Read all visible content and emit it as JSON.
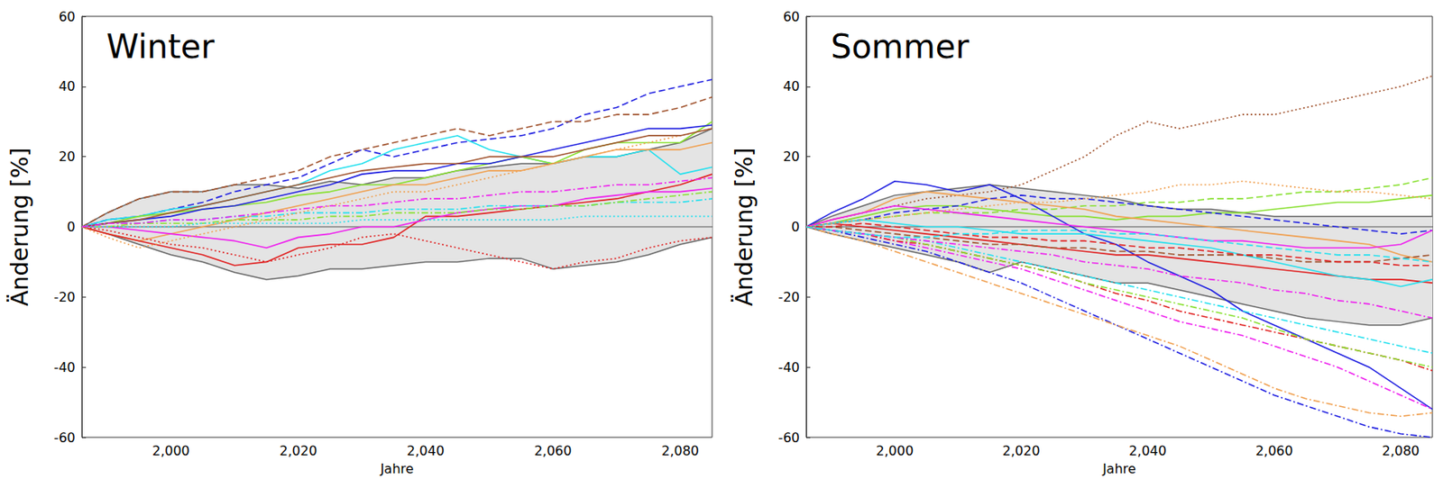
{
  "chart_data": [
    {
      "type": "line",
      "title": "Winter",
      "x_label": "Jahre",
      "y_label": "Änderung [%]",
      "x": [
        1986,
        1990,
        1995,
        2000,
        2005,
        2010,
        2015,
        2020,
        2025,
        2030,
        2035,
        2040,
        2045,
        2050,
        2055,
        2060,
        2065,
        2070,
        2075,
        2080,
        2085
      ],
      "xlim": [
        1986,
        2085
      ],
      "xticks": [
        2000,
        2020,
        2040,
        2060,
        2080
      ],
      "ylim": [
        -60,
        60
      ],
      "yticks": [
        -60,
        -40,
        -20,
        0,
        20,
        40,
        60
      ],
      "grid": false,
      "band": {
        "color": "#e4e4e4",
        "upper": [
          0,
          4,
          8,
          10,
          10,
          12,
          12,
          11,
          13,
          12,
          14,
          14,
          16,
          17,
          18,
          18,
          20,
          20,
          22,
          24,
          28
        ],
        "lower": [
          0,
          -2,
          -5,
          -8,
          -10,
          -13,
          -15,
          -14,
          -12,
          -12,
          -11,
          -10,
          -10,
          -9,
          -9,
          -12,
          -11,
          -10,
          -8,
          -5,
          -3
        ]
      },
      "series": [
        {
          "color": "#808080",
          "line_style": "solid",
          "values": [
            0,
            0,
            0,
            0,
            0,
            0,
            0,
            0,
            0,
            0,
            0,
            0,
            0,
            0,
            0,
            0,
            0,
            0,
            0,
            0,
            0
          ]
        },
        {
          "color": "#2020e0",
          "line_style": "dashed",
          "values": [
            0,
            2,
            3,
            5,
            7,
            10,
            12,
            14,
            18,
            22,
            20,
            22,
            24,
            25,
            26,
            28,
            32,
            34,
            38,
            40,
            42
          ]
        },
        {
          "color": "#a0522d",
          "line_style": "dashed",
          "values": [
            0,
            4,
            8,
            10,
            10,
            12,
            14,
            16,
            20,
            22,
            24,
            26,
            28,
            26,
            28,
            30,
            30,
            32,
            32,
            34,
            37
          ]
        },
        {
          "color": "#22e0ee",
          "line_style": "solid",
          "values": [
            0,
            2,
            3,
            5,
            6,
            8,
            10,
            12,
            16,
            18,
            22,
            24,
            26,
            22,
            20,
            18,
            20,
            20,
            22,
            15,
            17
          ]
        },
        {
          "color": "#88e030",
          "line_style": "solid",
          "values": [
            0,
            1,
            3,
            4,
            5,
            6,
            7,
            9,
            10,
            12,
            12,
            14,
            16,
            18,
            20,
            18,
            22,
            24,
            24,
            24,
            30
          ]
        },
        {
          "color": "#2020e0",
          "line_style": "solid",
          "values": [
            0,
            1,
            2,
            3,
            5,
            6,
            8,
            10,
            12,
            15,
            16,
            16,
            18,
            18,
            20,
            22,
            24,
            26,
            28,
            28,
            29
          ]
        },
        {
          "color": "#f0a050",
          "line_style": "solid",
          "values": [
            0,
            -2,
            -4,
            -2,
            0,
            2,
            4,
            6,
            8,
            10,
            12,
            12,
            14,
            16,
            16,
            18,
            20,
            22,
            22,
            22,
            24
          ]
        },
        {
          "color": "#e02020",
          "line_style": "solid",
          "values": [
            0,
            -2,
            -4,
            -6,
            -8,
            -11,
            -10,
            -6,
            -5,
            -5,
            -3,
            3,
            3,
            4,
            5,
            6,
            7,
            8,
            10,
            12,
            15
          ]
        },
        {
          "color": "#e02020",
          "line_style": "dotted",
          "values": [
            0,
            -1,
            -3,
            -5,
            -6,
            -8,
            -10,
            -8,
            -6,
            -3,
            -2,
            -4,
            -6,
            -8,
            -10,
            -12,
            -10,
            -9,
            -6,
            -4,
            -3
          ]
        },
        {
          "color": "#ee20ee",
          "line_style": "solid",
          "values": [
            0,
            0,
            -1,
            -2,
            -3,
            -4,
            -6,
            -3,
            -2,
            0,
            0,
            2,
            4,
            5,
            6,
            6,
            8,
            9,
            10,
            10,
            11
          ]
        },
        {
          "color": "#22e0ee",
          "line_style": "dashdot",
          "values": [
            0,
            1,
            1,
            2,
            2,
            3,
            3,
            4,
            4,
            4,
            5,
            5,
            5,
            6,
            6,
            6,
            6,
            7,
            7,
            7,
            8
          ]
        },
        {
          "color": "#88e030",
          "line_style": "dashdot",
          "values": [
            0,
            0,
            1,
            1,
            1,
            2,
            2,
            2,
            3,
            3,
            4,
            4,
            4,
            5,
            5,
            6,
            6,
            7,
            8,
            9,
            10
          ]
        },
        {
          "color": "#f0a050",
          "line_style": "dotted",
          "values": [
            0,
            -3,
            -6,
            -4,
            -2,
            0,
            2,
            4,
            6,
            8,
            10,
            10,
            12,
            14,
            16,
            18,
            20,
            22,
            24,
            26,
            28
          ]
        },
        {
          "color": "#a0522d",
          "line_style": "solid",
          "values": [
            0,
            1,
            2,
            4,
            6,
            8,
            10,
            12,
            14,
            16,
            17,
            18,
            18,
            20,
            20,
            20,
            22,
            24,
            26,
            26,
            28
          ]
        },
        {
          "color": "#22e0ee",
          "line_style": "dotted",
          "values": [
            0,
            0,
            0,
            0,
            1,
            1,
            1,
            1,
            1,
            2,
            2,
            2,
            2,
            2,
            2,
            2,
            3,
            3,
            3,
            3,
            3
          ]
        },
        {
          "color": "#ee20ee",
          "line_style": "dashdot",
          "values": [
            0,
            1,
            1,
            2,
            2,
            3,
            4,
            5,
            6,
            6,
            7,
            8,
            8,
            9,
            10,
            10,
            11,
            12,
            12,
            13,
            14
          ]
        }
      ]
    },
    {
      "type": "line",
      "title": "Sommer",
      "x_label": "Jahre",
      "y_label": "Änderung [%]",
      "x": [
        1986,
        1990,
        1995,
        2000,
        2005,
        2010,
        2015,
        2020,
        2025,
        2030,
        2035,
        2040,
        2045,
        2050,
        2055,
        2060,
        2065,
        2070,
        2075,
        2080,
        2085
      ],
      "xlim": [
        1986,
        2085
      ],
      "xticks": [
        2000,
        2020,
        2040,
        2060,
        2080
      ],
      "ylim": [
        -60,
        60
      ],
      "yticks": [
        -60,
        -40,
        -20,
        0,
        20,
        40,
        60
      ],
      "grid": false,
      "band": {
        "color": "#e4e4e4",
        "upper": [
          0,
          3,
          6,
          9,
          10,
          11,
          12,
          11,
          10,
          9,
          8,
          6,
          5,
          5,
          4,
          3,
          3,
          3,
          3,
          3,
          3
        ],
        "lower": [
          0,
          -2,
          -4,
          -6,
          -8,
          -10,
          -13,
          -10,
          -12,
          -14,
          -16,
          -16,
          -18,
          -20,
          -22,
          -24,
          -26,
          -27,
          -28,
          -28,
          -26
        ]
      },
      "series": [
        {
          "color": "#808080",
          "line_style": "solid",
          "values": [
            0,
            0,
            0,
            0,
            0,
            0,
            0,
            0,
            0,
            0,
            0,
            0,
            0,
            0,
            0,
            0,
            0,
            0,
            0,
            0,
            0
          ]
        },
        {
          "color": "#a0522d",
          "line_style": "dotted",
          "values": [
            0,
            2,
            4,
            6,
            8,
            9,
            10,
            12,
            16,
            20,
            26,
            30,
            28,
            30,
            32,
            32,
            34,
            36,
            38,
            40,
            43
          ]
        },
        {
          "color": "#88e030",
          "line_style": "dashed",
          "values": [
            0,
            1,
            2,
            3,
            4,
            4,
            4,
            5,
            5,
            6,
            6,
            7,
            7,
            8,
            8,
            9,
            10,
            10,
            11,
            12,
            14
          ]
        },
        {
          "color": "#88e030",
          "line_style": "solid",
          "values": [
            0,
            1,
            3,
            5,
            6,
            6,
            5,
            4,
            3,
            3,
            2,
            3,
            3,
            4,
            4,
            5,
            6,
            7,
            7,
            8,
            9
          ]
        },
        {
          "color": "#2020e0",
          "line_style": "solid",
          "values": [
            0,
            4,
            8,
            13,
            12,
            10,
            12,
            8,
            3,
            -2,
            -5,
            -10,
            -14,
            -18,
            -24,
            -28,
            -32,
            -36,
            -40,
            -46,
            -52
          ]
        },
        {
          "color": "#f0a050",
          "line_style": "solid",
          "values": [
            0,
            2,
            4,
            8,
            10,
            9,
            8,
            7,
            6,
            5,
            3,
            2,
            1,
            0,
            -1,
            -2,
            -3,
            -4,
            -5,
            -8,
            -10
          ]
        },
        {
          "color": "#2020e0",
          "line_style": "dashed",
          "values": [
            0,
            1,
            2,
            4,
            5,
            6,
            8,
            9,
            8,
            8,
            7,
            6,
            5,
            4,
            3,
            2,
            1,
            0,
            -1,
            -2,
            -1
          ]
        },
        {
          "color": "#2020e0",
          "line_style": "dashdot",
          "values": [
            0,
            -1,
            -3,
            -5,
            -7,
            -10,
            -13,
            -16,
            -20,
            -24,
            -28,
            -32,
            -36,
            -40,
            -44,
            -48,
            -51,
            -54,
            -57,
            -59,
            -60
          ]
        },
        {
          "color": "#f0a050",
          "line_style": "dashdot",
          "values": [
            0,
            -2,
            -4,
            -7,
            -10,
            -13,
            -16,
            -19,
            -22,
            -25,
            -28,
            -31,
            -34,
            -38,
            -42,
            -46,
            -49,
            -51,
            -53,
            -54,
            -53
          ]
        },
        {
          "color": "#ee20ee",
          "line_style": "dashdot",
          "values": [
            0,
            -1,
            -2,
            -4,
            -6,
            -8,
            -10,
            -12,
            -15,
            -18,
            -21,
            -24,
            -27,
            -29,
            -31,
            -34,
            -37,
            -40,
            -44,
            -48,
            -52
          ]
        },
        {
          "color": "#e02020",
          "line_style": "dashdot",
          "values": [
            0,
            -1,
            -2,
            -4,
            -5,
            -7,
            -9,
            -11,
            -13,
            -16,
            -19,
            -21,
            -24,
            -26,
            -28,
            -30,
            -32,
            -34,
            -36,
            -38,
            -41
          ]
        },
        {
          "color": "#88e030",
          "line_style": "dashdot",
          "values": [
            0,
            -1,
            -2,
            -3,
            -5,
            -7,
            -9,
            -11,
            -13,
            -16,
            -18,
            -20,
            -22,
            -24,
            -26,
            -29,
            -32,
            -34,
            -36,
            -38,
            -40
          ]
        },
        {
          "color": "#22e0ee",
          "line_style": "dashdot",
          "values": [
            0,
            -1,
            -2,
            -3,
            -4,
            -6,
            -8,
            -10,
            -12,
            -14,
            -16,
            -18,
            -20,
            -22,
            -24,
            -26,
            -28,
            -30,
            -32,
            -34,
            -36
          ]
        },
        {
          "color": "#ee20ee",
          "line_style": "dashdot",
          "values": [
            0,
            -1,
            -2,
            -3,
            -4,
            -5,
            -6,
            -7,
            -8,
            -10,
            -11,
            -12,
            -14,
            -15,
            -16,
            -18,
            -19,
            -21,
            -22,
            -24,
            -26
          ]
        },
        {
          "color": "#e02020",
          "line_style": "solid",
          "values": [
            0,
            1,
            0,
            -1,
            -2,
            -3,
            -4,
            -5,
            -6,
            -7,
            -8,
            -8,
            -9,
            -10,
            -11,
            -12,
            -13,
            -14,
            -15,
            -15,
            -16
          ]
        },
        {
          "color": "#22e0ee",
          "line_style": "solid",
          "values": [
            0,
            1,
            2,
            1,
            0,
            0,
            -1,
            -2,
            -2,
            -2,
            -3,
            -4,
            -5,
            -6,
            -8,
            -10,
            -12,
            -14,
            -15,
            -17,
            -15
          ]
        },
        {
          "color": "#ee20ee",
          "line_style": "solid",
          "values": [
            0,
            2,
            4,
            6,
            5,
            4,
            3,
            2,
            1,
            0,
            -1,
            -2,
            -3,
            -4,
            -4,
            -5,
            -6,
            -6,
            -6,
            -5,
            -1
          ]
        },
        {
          "color": "#a0522d",
          "line_style": "dashed",
          "values": [
            0,
            0,
            -1,
            -2,
            -3,
            -4,
            -5,
            -5,
            -6,
            -6,
            -7,
            -7,
            -8,
            -8,
            -8,
            -9,
            -10,
            -10,
            -10,
            -9,
            -8
          ]
        },
        {
          "color": "#e02020",
          "line_style": "dashed",
          "values": [
            0,
            0,
            1,
            0,
            -1,
            -2,
            -3,
            -3,
            -4,
            -4,
            -5,
            -6,
            -6,
            -7,
            -8,
            -8,
            -9,
            -10,
            -10,
            -11,
            -11
          ]
        },
        {
          "color": "#f0a050",
          "line_style": "dotted",
          "values": [
            0,
            1,
            2,
            3,
            4,
            5,
            6,
            7,
            7,
            8,
            9,
            10,
            12,
            12,
            13,
            12,
            11,
            10,
            10,
            9,
            8
          ]
        },
        {
          "color": "#22e0ee",
          "line_style": "dashed",
          "values": [
            0,
            -1,
            -2,
            -3,
            -3,
            -2,
            -2,
            -1,
            -1,
            -1,
            -2,
            -2,
            -3,
            -4,
            -5,
            -6,
            -7,
            -8,
            -8,
            -9,
            -10
          ]
        }
      ]
    }
  ]
}
